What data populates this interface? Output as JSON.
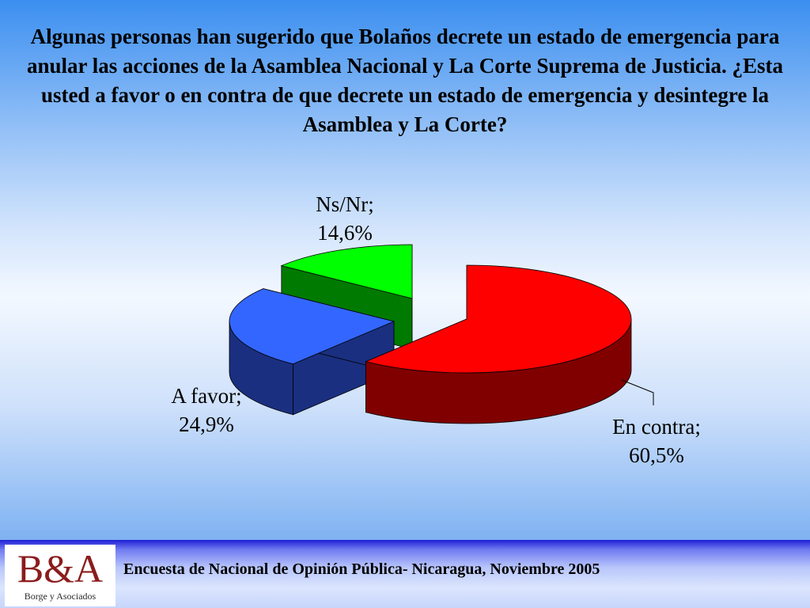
{
  "slide": {
    "title": "Algunas personas han sugerido que Bolaños decrete un estado de emergencia para anular las acciones de la Asamblea Nacional y La Corte Suprema de Justicia.  ¿Esta usted a favor o en contra de que decrete un estado de emergencia y desintegre la Asamblea y La Corte?"
  },
  "chart_data": {
    "type": "pie",
    "title": "Algunas personas han sugerido que Bolaños decrete un estado de emergencia para anular las acciones de la Asamblea Nacional y La Corte Suprema de Justicia.  ¿Esta usted a favor o en contra de que decrete un estado de emergencia y desintegre la Asamblea y La Corte?",
    "categories": [
      "En contra",
      "A favor",
      "Ns/Nr"
    ],
    "values": [
      60.5,
      24.9,
      14.6
    ],
    "labels": {
      "en_contra": {
        "name": "En contra;",
        "value": "60,5%"
      },
      "a_favor": {
        "name": "A favor;",
        "value": "24,9%"
      },
      "ns_nr": {
        "name": "Ns/Nr;",
        "value": "14,6%"
      }
    },
    "colors": {
      "en_contra": {
        "top": "#ff0000",
        "side": "#800000"
      },
      "a_favor": {
        "top": "#3366ff",
        "side": "#1a2f80"
      },
      "ns_nr": {
        "top": "#00ff00",
        "side": "#007a00"
      }
    },
    "style": "3d-exploded"
  },
  "footer": {
    "logo_mark": "B&A",
    "logo_sub": "Borge y Asociados",
    "text": "Encuesta de Nacional de Opinión Pública- Nicaragua, Noviembre 2005"
  }
}
